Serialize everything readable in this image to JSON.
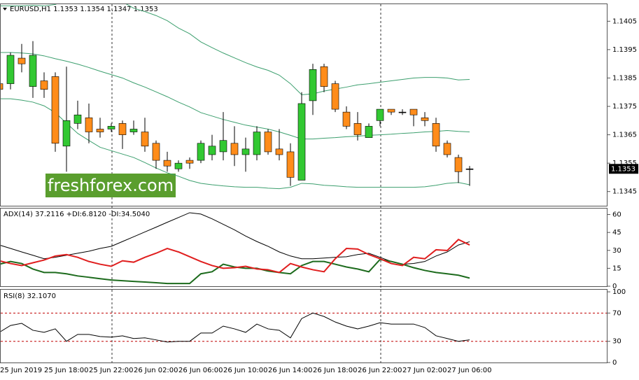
{
  "chart_data": [
    {
      "type": "candlestick",
      "title": "EURUSD,H1  1.1353 1.1354 1.1347 1.1353",
      "categories": [
        "25 Jun 2019",
        null,
        null,
        null,
        "25 Jun 18:00",
        null,
        null,
        null,
        "25 Jun 22:00",
        null,
        null,
        null,
        "26 Jun 02:00",
        null,
        null,
        null,
        "26 Jun 06:00",
        null,
        null,
        null,
        "26 Jun 10:00",
        null,
        null,
        null,
        "26 Jun 14:00",
        null,
        null,
        null,
        "26 Jun 18:00",
        null,
        null,
        null,
        "26 Jun 22:00",
        null,
        null,
        null,
        "27 Jun 02:00",
        null,
        null,
        null,
        "27 Jun 06:00",
        null,
        null
      ],
      "open": [
        1.1383,
        1.1383,
        1.1392,
        1.1382,
        1.1384,
        1.13855,
        1.1361,
        1.1369,
        1.1371,
        1.1367,
        1.1367,
        1.1369,
        1.1366,
        1.1366,
        1.1362,
        1.1356,
        1.1353,
        1.1356,
        1.1356,
        1.1358,
        1.1359,
        1.1362,
        1.1358,
        1.1358,
        1.1366,
        1.136,
        1.1359,
        1.1349,
        1.1377,
        1.1389,
        1.1383,
        1.1373,
        1.1369,
        1.1364,
        1.137,
        1.1374,
        1.1373,
        1.1374,
        1.1371,
        1.1369,
        1.1362,
        1.1357,
        1.1353
      ],
      "high": [
        1.1385,
        1.1394,
        1.1397,
        1.1398,
        1.1387,
        1.1387,
        1.1389,
        1.1377,
        1.1376,
        1.1371,
        1.1369,
        1.137,
        1.137,
        1.1371,
        1.1363,
        1.1359,
        1.1356,
        1.1357,
        1.1363,
        1.1365,
        1.1373,
        1.1368,
        1.1364,
        1.1368,
        1.1367,
        1.1367,
        1.1362,
        1.138,
        1.139,
        1.139,
        1.1384,
        1.1375,
        1.1373,
        1.1369,
        1.1374,
        1.1374,
        1.1374,
        1.1374,
        1.1373,
        1.1371,
        1.1363,
        1.1358,
        1.1354
      ],
      "low": [
        1.1376,
        1.1381,
        1.1387,
        1.1378,
        1.1378,
        1.1359,
        1.1352,
        1.1367,
        1.1362,
        1.1364,
        1.1366,
        1.136,
        1.1365,
        1.1359,
        1.1353,
        1.1352,
        1.1352,
        1.1353,
        1.1355,
        1.1356,
        1.1356,
        1.1354,
        1.1352,
        1.1356,
        1.1358,
        1.1356,
        1.1347,
        1.1349,
        1.1372,
        1.138,
        1.1373,
        1.1367,
        1.1363,
        1.1364,
        1.1368,
        1.1372,
        1.1372,
        1.1368,
        1.1368,
        1.1359,
        1.1357,
        1.1348,
        1.1347
      ],
      "close": [
        1.1381,
        1.1393,
        1.139,
        1.1393,
        1.1381,
        1.1362,
        1.137,
        1.1372,
        1.1366,
        1.1366,
        1.1368,
        1.1365,
        1.1367,
        1.1361,
        1.1356,
        1.1354,
        1.1355,
        1.1355,
        1.1362,
        1.1361,
        1.1363,
        1.1358,
        1.136,
        1.1366,
        1.1359,
        1.1358,
        1.135,
        1.1376,
        1.1388,
        1.1382,
        1.1374,
        1.1368,
        1.1365,
        1.1368,
        1.1374,
        1.1373,
        1.1373,
        1.1372,
        1.137,
        1.1361,
        1.1358,
        1.1352,
        1.1353
      ],
      "up_color": "#32c832",
      "down_color": "#ff8c1a",
      "series": [
        {
          "color": "#3c9f6e",
          "values": [
            1.14104,
            1.14104,
            1.14104,
            1.14106,
            1.14104,
            1.14109,
            1.14126,
            1.14143,
            1.14143,
            1.14143,
            1.1413,
            1.14118,
            1.14096,
            1.14084,
            1.1407,
            1.14052,
            1.14026,
            1.14006,
            1.13977,
            1.13957,
            1.13938,
            1.13921,
            1.13904,
            1.13889,
            1.13877,
            1.1386,
            1.1383,
            1.13791,
            1.13794,
            1.13804,
            1.13811,
            1.13818,
            1.13826,
            1.1383,
            1.13835,
            1.1384,
            1.13845,
            1.1385,
            1.13852,
            1.13852,
            1.1385,
            1.13843,
            1.13845
          ]
        },
        {
          "color": "#3c9f6e",
          "values": [
            1.1394,
            1.1394,
            1.13938,
            1.13935,
            1.13928,
            1.13918,
            1.13909,
            1.13899,
            1.13887,
            1.13874,
            1.13862,
            1.1385,
            1.13833,
            1.13818,
            1.13801,
            1.13784,
            1.13765,
            1.13748,
            1.13728,
            1.13716,
            1.13704,
            1.13694,
            1.13684,
            1.13677,
            1.1367,
            1.1366,
            1.13648,
            1.13635,
            1.13635,
            1.13638,
            1.1364,
            1.13643,
            1.13645,
            1.13648,
            1.1365,
            1.13652,
            1.13655,
            1.13657,
            1.1366,
            1.13662,
            1.13665,
            1.13662,
            1.1366
          ]
        },
        {
          "color": "#3c9f6e",
          "values": [
            1.13777,
            1.13777,
            1.13772,
            1.13765,
            1.13752,
            1.13728,
            1.13691,
            1.13655,
            1.1363,
            1.13606,
            1.13594,
            1.13582,
            1.1357,
            1.13552,
            1.13533,
            1.13516,
            1.13504,
            1.13489,
            1.13479,
            1.13474,
            1.1347,
            1.13467,
            1.13465,
            1.13465,
            1.13462,
            1.1346,
            1.13465,
            1.13479,
            1.13477,
            1.13472,
            1.1347,
            1.13467,
            1.13465,
            1.13465,
            1.13465,
            1.13465,
            1.13465,
            1.13465,
            1.13467,
            1.13472,
            1.13479,
            1.13482,
            1.13474
          ]
        }
      ],
      "ylim": [
        1.134,
        1.1411
      ],
      "yticks": [
        1.1345,
        1.1355,
        1.1365,
        1.1375,
        1.1385,
        1.1395,
        1.1405
      ],
      "current_price": 1.1353,
      "watermark": "freshforex.com"
    },
    {
      "type": "line",
      "title": "ADX(14) 37.2116 +DI:6.8120 -DI:34.5040",
      "series": [
        {
          "color": "#000000",
          "width": 1,
          "values": [
            34.5,
            31.6,
            28.7,
            25.9,
            23.0,
            24.2,
            25.9,
            27.6,
            29.3,
            31.6,
            33.4,
            37.4,
            41.4,
            45.4,
            49.4,
            53.5,
            57.5,
            61.5,
            60.4,
            56.4,
            51.8,
            47.2,
            42.0,
            37.4,
            33.4,
            28.7,
            25.3,
            23.0,
            23.0,
            23.6,
            24.2,
            24.7,
            26.5,
            27.6,
            24.2,
            20.7,
            18.4,
            19.0,
            20.7,
            25.3,
            28.7,
            34.5,
            37.2116
          ]
        },
        {
          "color": "#1d6b1d",
          "width": 2,
          "values": [
            18.4,
            20.7,
            19.0,
            14.4,
            11.5,
            11.5,
            10.4,
            8.6,
            7.5,
            6.3,
            5.2,
            4.6,
            4.0,
            3.5,
            2.9,
            2.3,
            2.3,
            2.3,
            10.4,
            12.1,
            18.4,
            16.1,
            15.0,
            15.0,
            12.7,
            11.5,
            10.4,
            17.3,
            20.7,
            20.7,
            18.4,
            16.1,
            14.4,
            12.1,
            22.4,
            20.7,
            18.4,
            15.5,
            13.2,
            11.5,
            10.4,
            9.2,
            6.812
          ]
        },
        {
          "color": "#e01e1e",
          "width": 2,
          "values": [
            21.3,
            19.0,
            17.3,
            19.6,
            21.9,
            25.3,
            26.5,
            24.2,
            20.7,
            18.4,
            16.7,
            21.3,
            20.1,
            24.2,
            27.6,
            31.6,
            28.7,
            24.7,
            20.7,
            17.3,
            15.0,
            15.5,
            16.7,
            14.4,
            13.8,
            11.5,
            19.0,
            16.1,
            13.8,
            12.1,
            23.0,
            31.6,
            31.1,
            26.5,
            23.0,
            19.0,
            17.3,
            24.2,
            23.0,
            30.5,
            29.9,
            39.1,
            34.504
          ]
        }
      ],
      "ylim": [
        0,
        65
      ],
      "yticks": [
        0,
        15,
        30,
        45,
        60
      ]
    },
    {
      "type": "line",
      "title": "RSI(8) 32.1070",
      "series": [
        {
          "color": "#000000",
          "width": 1,
          "values": [
            42.7,
            52.4,
            55.4,
            45.6,
            42.7,
            47.6,
            30.0,
            39.8,
            39.8,
            36.8,
            35.9,
            37.8,
            33.9,
            34.9,
            32.0,
            29.0,
            30.0,
            30.0,
            41.7,
            41.7,
            51.5,
            47.6,
            42.7,
            54.4,
            47.6,
            45.6,
            34.9,
            62.2,
            70.0,
            65.1,
            57.3,
            51.5,
            47.6,
            51.5,
            56.3,
            54.4,
            54.4,
            54.4,
            49.5,
            37.8,
            33.9,
            30.0,
            32.107
          ]
        }
      ],
      "ylim": [
        0,
        103
      ],
      "yticks": [
        0,
        30,
        70,
        100
      ],
      "levels": [
        30,
        70
      ],
      "level_color": "#c00000"
    }
  ]
}
